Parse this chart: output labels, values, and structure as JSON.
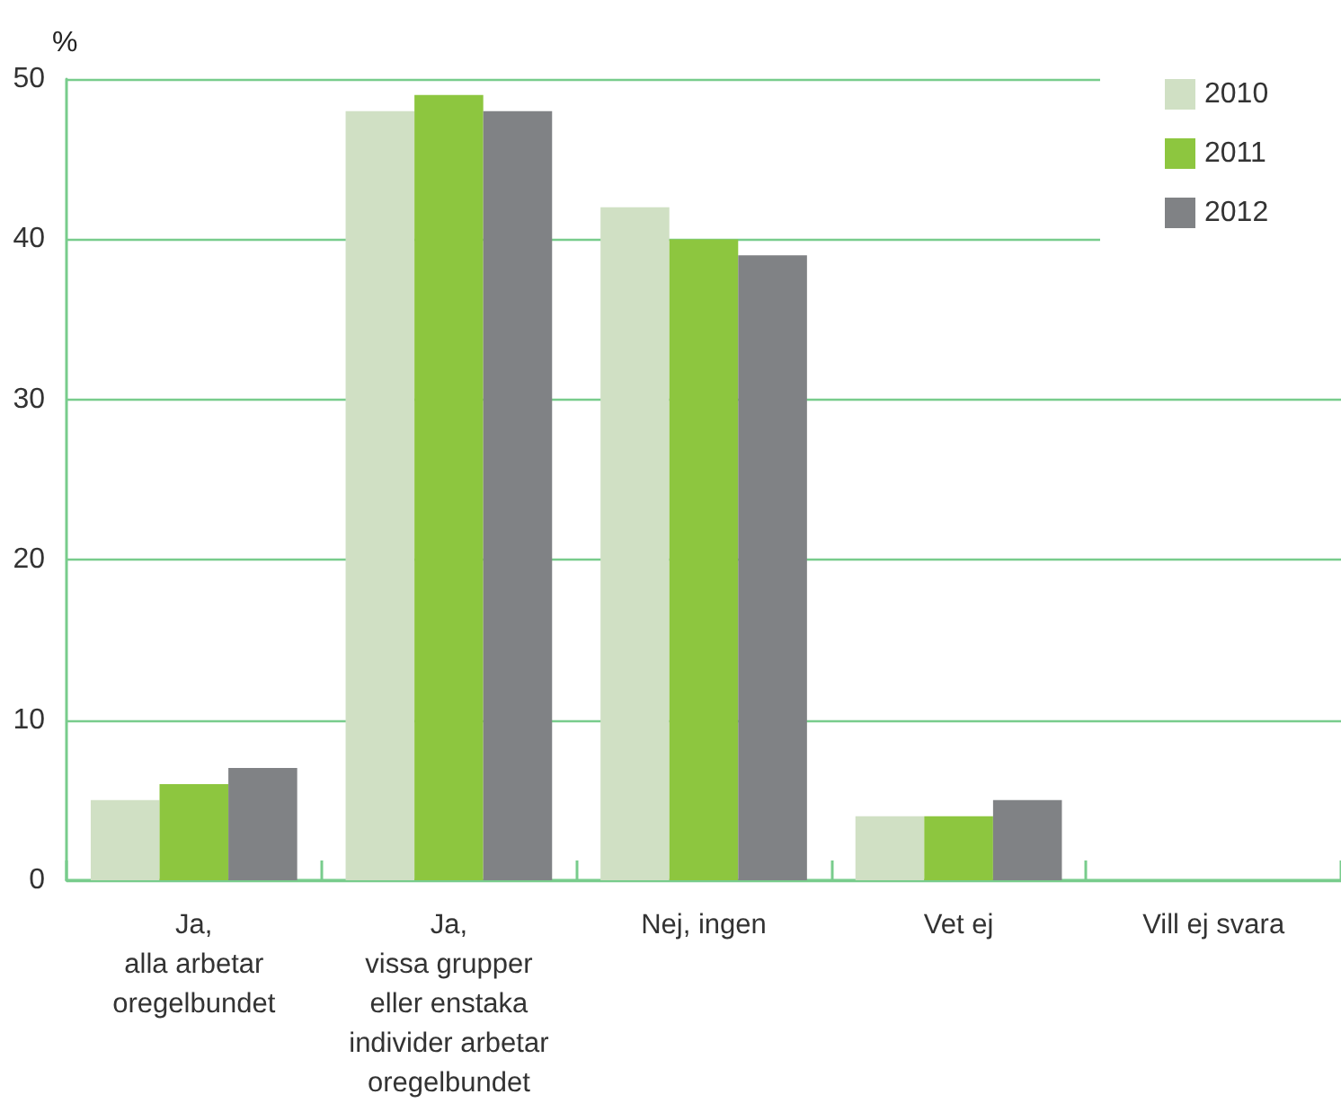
{
  "chart_data": {
    "type": "bar",
    "ylabel": "%",
    "categories": [
      "Ja,\nalla arbetar\noregelbundet",
      "Ja,\nvissa grupper\neller enstaka\nindivider arbetar\noregelbundet",
      "Nej, ingen",
      "Vet ej",
      "Vill ej svara"
    ],
    "series": [
      {
        "name": "2010",
        "color": "#d0e0c4",
        "values": [
          5,
          48,
          42,
          4,
          0
        ]
      },
      {
        "name": "2011",
        "color": "#8dc63f",
        "values": [
          6,
          49,
          40,
          4,
          0
        ]
      },
      {
        "name": "2012",
        "color": "#808285",
        "values": [
          7,
          48,
          39,
          5,
          0
        ]
      }
    ],
    "ylim": [
      0,
      50
    ],
    "yticks": [
      0,
      10,
      20,
      30,
      40,
      50
    ],
    "grid": "y",
    "legend": "top right"
  }
}
